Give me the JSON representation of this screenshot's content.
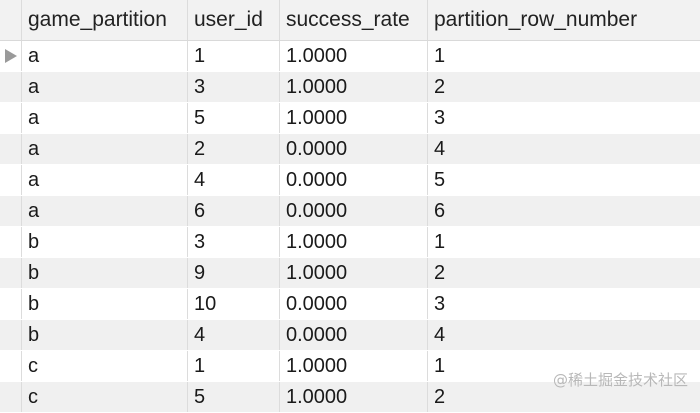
{
  "table": {
    "columns": [
      "game_partition",
      "user_id",
      "success_rate",
      "partition_row_number"
    ],
    "rows": [
      [
        "a",
        "1",
        "1.0000",
        "1"
      ],
      [
        "a",
        "3",
        "1.0000",
        "2"
      ],
      [
        "a",
        "5",
        "1.0000",
        "3"
      ],
      [
        "a",
        "2",
        "0.0000",
        "4"
      ],
      [
        "a",
        "4",
        "0.0000",
        "5"
      ],
      [
        "a",
        "6",
        "0.0000",
        "6"
      ],
      [
        "b",
        "3",
        "1.0000",
        "1"
      ],
      [
        "b",
        "9",
        "1.0000",
        "2"
      ],
      [
        "b",
        "10",
        "0.0000",
        "3"
      ],
      [
        "b",
        "4",
        "0.0000",
        "4"
      ],
      [
        "c",
        "1",
        "1.0000",
        "1"
      ],
      [
        "c",
        "5",
        "1.0000",
        "2"
      ]
    ],
    "selected_row_index": 0
  },
  "watermark": {
    "text": "@稀土掘金技术社区"
  },
  "colors": {
    "alt_row": "#f0f0f0",
    "header_bg": "#f2f2f2",
    "marker": "#9a9a9a"
  }
}
